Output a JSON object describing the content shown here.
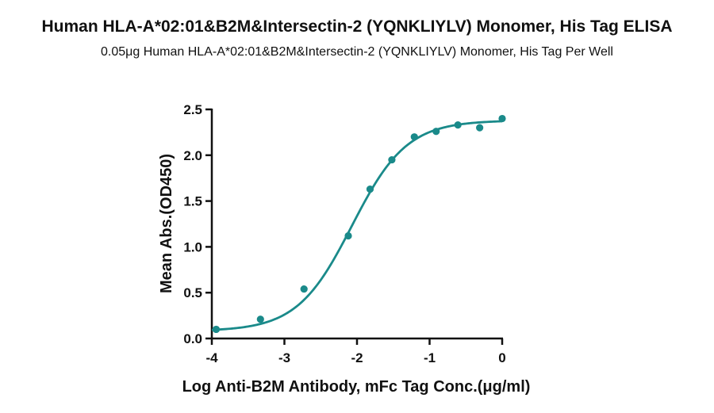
{
  "title": "Human HLA-A*02:01&B2M&Intersectin-2 (YQNKLIYLV) Monomer, His Tag ELISA",
  "subtitle": "0.05μg Human HLA-A*02:01&B2M&Intersectin-2 (YQNKLIYLV) Monomer, His Tag Per Well",
  "chart_data": {
    "type": "scatter",
    "title": "Human HLA-A*02:01&B2M&Intersectin-2 (YQNKLIYLV) Monomer, His Tag ELISA",
    "subtitle": "0.05μg Human HLA-A*02:01&B2M&Intersectin-2 (YQNKLIYLV) Monomer, His Tag Per Well",
    "xlabel": "Log Anti-B2M Antibody, mFc Tag Conc.(μg/ml)",
    "ylabel": "Mean Abs.(OD450)",
    "xlim": [
      -4,
      0
    ],
    "ylim": [
      0,
      2.5
    ],
    "xticks": [
      "-4",
      "-3",
      "-2",
      "-1",
      "0"
    ],
    "yticks": [
      "0.0",
      "0.5",
      "1.0",
      "1.5",
      "2.0",
      "2.5"
    ],
    "grid": false,
    "color": "#1a8a8a",
    "series": [
      {
        "points": [
          {
            "x": -3.94,
            "y": 0.1
          },
          {
            "x": -3.33,
            "y": 0.21
          },
          {
            "x": -2.73,
            "y": 0.54
          },
          {
            "x": -2.12,
            "y": 1.12
          },
          {
            "x": -1.82,
            "y": 1.63
          },
          {
            "x": -1.52,
            "y": 1.95
          },
          {
            "x": -1.21,
            "y": 2.2
          },
          {
            "x": -0.91,
            "y": 2.26
          },
          {
            "x": -0.61,
            "y": 2.33
          },
          {
            "x": -0.31,
            "y": 2.3
          },
          {
            "x": 0.0,
            "y": 2.4
          }
        ],
        "fit": {
          "model": "4PL",
          "bottom": 0.08,
          "top": 2.38,
          "logEC50": -2.07,
          "hillslope": 1.15
        }
      }
    ]
  }
}
